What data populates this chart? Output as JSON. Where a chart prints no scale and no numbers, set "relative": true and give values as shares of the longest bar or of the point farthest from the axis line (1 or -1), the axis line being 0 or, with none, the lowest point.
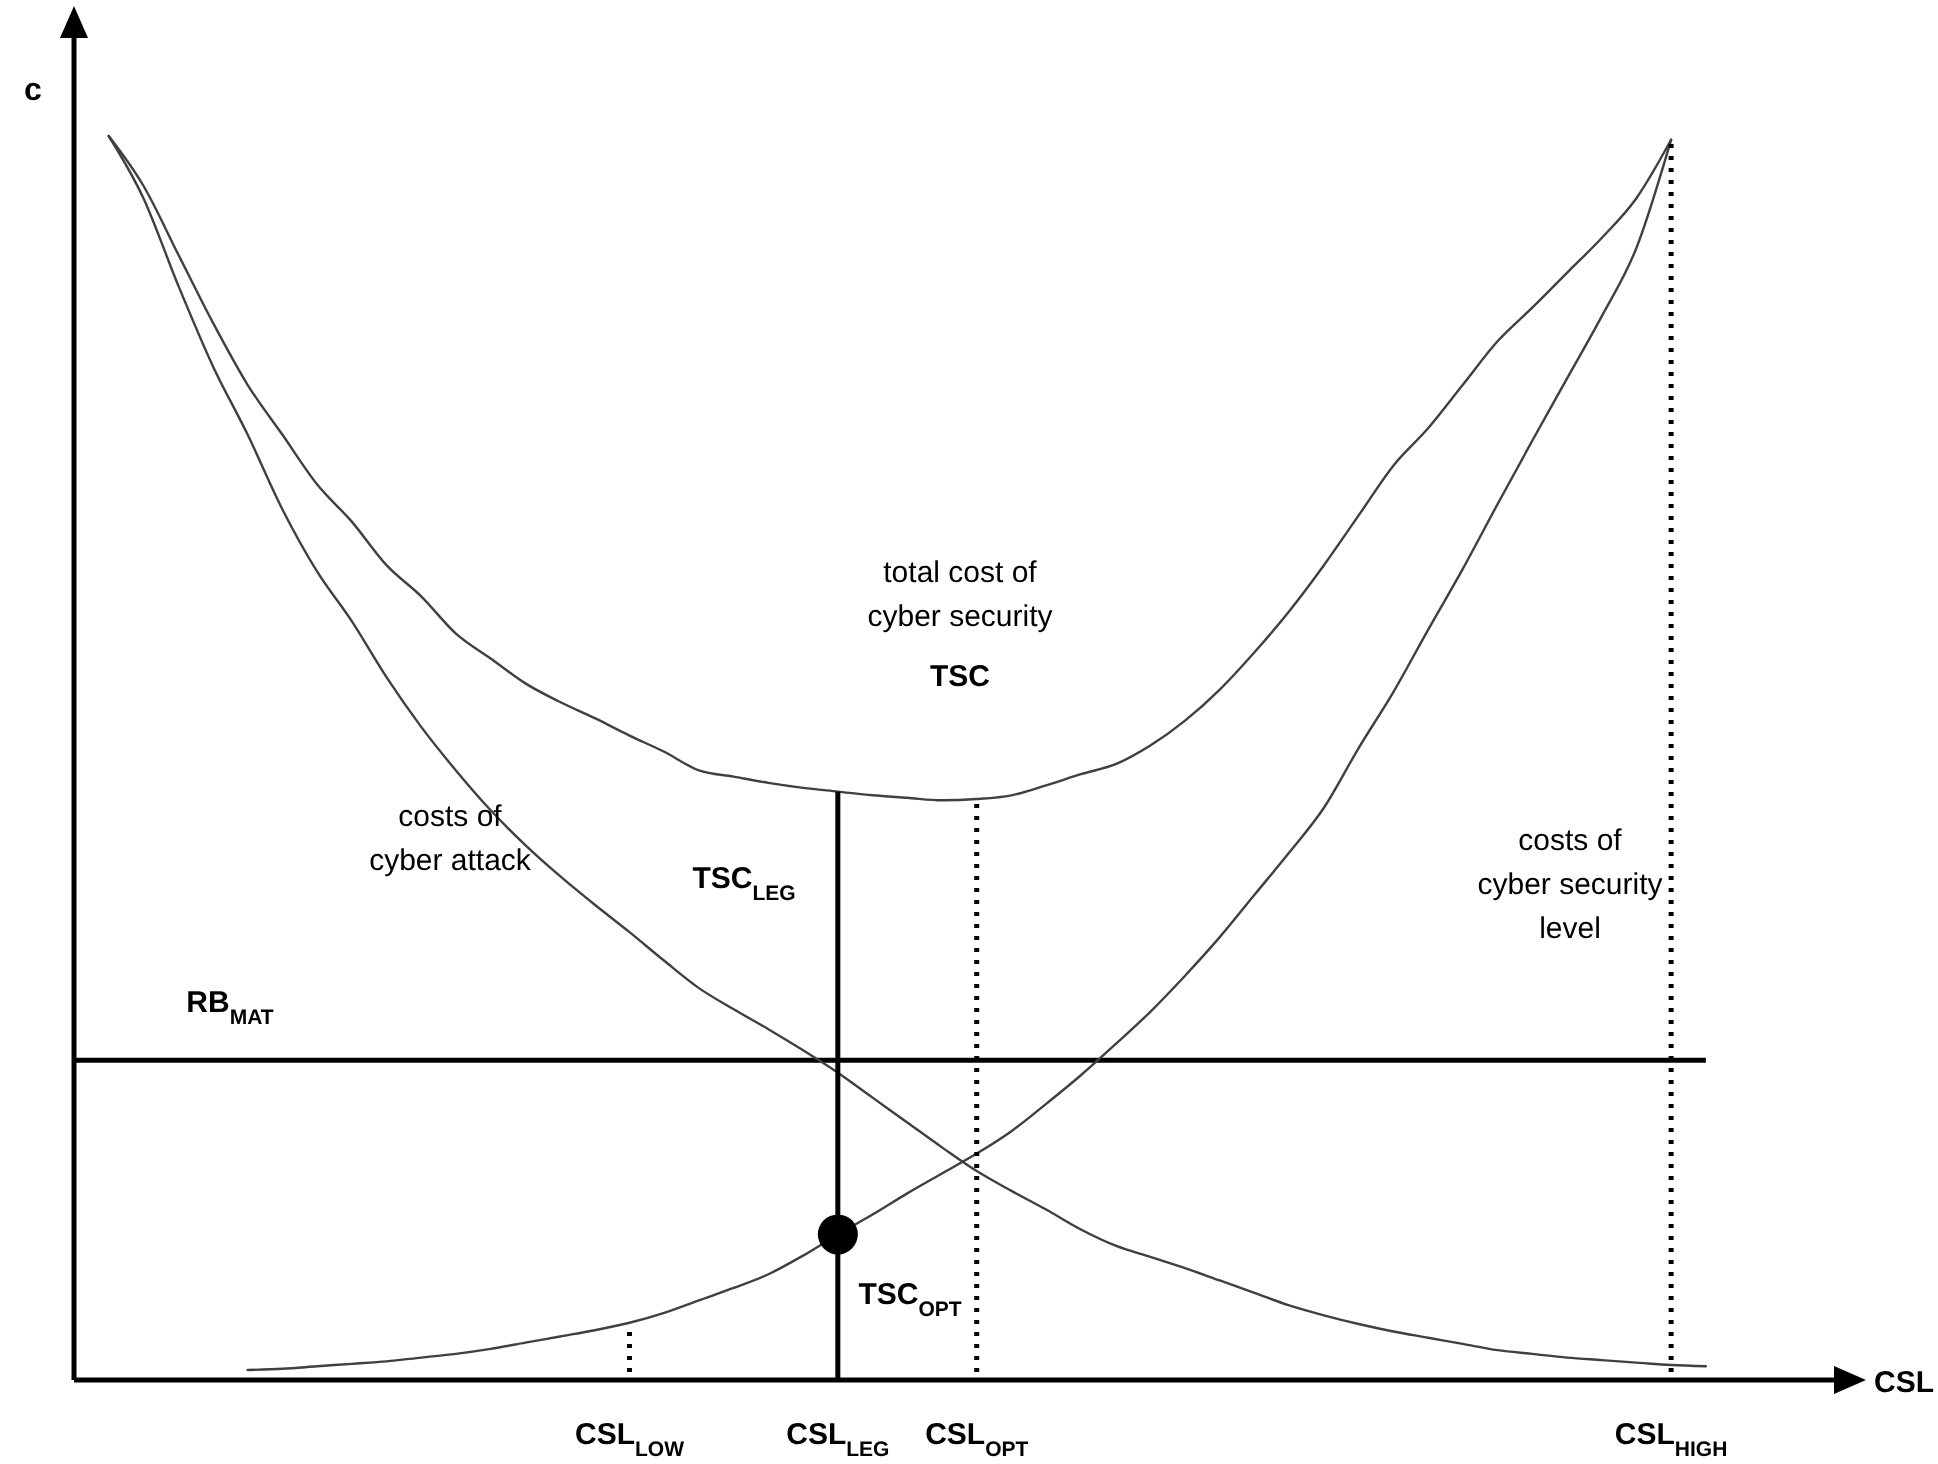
{
  "chart_data": {
    "type": "line",
    "relative": true,
    "xlabel": "CSL",
    "ylabel": "c",
    "categories": [
      null,
      null,
      null,
      null,
      null,
      null,
      null,
      null,
      null,
      null,
      null,
      null,
      null,
      null,
      null,
      null,
      "CSL$_{LOW}$",
      null,
      null,
      null,
      null,
      null,
      "CSL$_{LEG}$",
      null,
      null,
      null,
      "CSL$_{OPT}$",
      null,
      null,
      null,
      null,
      null,
      null,
      null,
      null,
      null,
      null,
      null,
      null,
      null,
      null,
      null,
      null,
      null,
      null,
      null,
      "CSL$_{HIGH}$",
      null,
      null,
      null,
      null
    ],
    "series": [
      {
        "color": "#404040",
        "values": [
          null,
          1.0,
          0.95,
          0.88,
          0.815,
          0.76,
          0.7,
          0.65,
          0.61,
          0.565,
          0.525,
          0.49,
          0.458,
          0.43,
          0.405,
          0.382,
          0.36,
          0.337,
          0.315,
          0.298,
          0.282,
          0.265,
          0.247,
          0.227,
          0.207,
          0.187,
          0.168,
          0.152,
          0.137,
          0.121,
          0.108,
          0.099,
          0.09,
          0.08,
          0.07,
          0.06,
          0.052,
          0.045,
          0.039,
          0.034,
          0.029,
          0.024,
          0.021,
          0.018,
          0.016,
          0.014,
          0.012,
          0.011,
          null,
          null,
          null
        ]
      },
      {
        "color": "#404040",
        "values": [
          null,
          null,
          null,
          null,
          null,
          0.008,
          0.009,
          0.011,
          0.013,
          0.015,
          0.018,
          0.021,
          0.025,
          0.03,
          0.035,
          0.04,
          0.046,
          0.054,
          0.064,
          0.074,
          0.085,
          0.1,
          0.117,
          0.133,
          0.15,
          0.166,
          0.182,
          0.2,
          0.222,
          0.245,
          0.27,
          0.296,
          0.325,
          0.356,
          0.39,
          0.424,
          0.46,
          0.508,
          0.553,
          0.603,
          0.652,
          0.704,
          0.755,
          0.805,
          0.855,
          0.91,
          0.997,
          null,
          null,
          null,
          null
        ]
      },
      {
        "color": "#404040",
        "values": [
          null,
          1.0,
          0.96,
          0.905,
          0.85,
          0.8,
          0.76,
          0.72,
          0.69,
          0.655,
          0.63,
          0.6,
          0.58,
          0.56,
          0.545,
          0.532,
          0.518,
          0.505,
          0.49,
          0.485,
          0.48,
          0.476,
          0.473,
          0.47,
          0.468,
          0.466,
          0.467,
          0.47,
          0.478,
          0.487,
          0.495,
          0.51,
          0.53,
          0.555,
          0.585,
          0.618,
          0.655,
          0.695,
          0.735,
          0.765,
          0.8,
          0.835,
          0.862,
          0.89,
          0.918,
          0.95,
          0.997,
          null,
          null,
          null,
          null
        ]
      },
      {
        "type": "bar",
        "color": "#000000",
        "line_style": "solid",
        "values": [
          null,
          null,
          null,
          null,
          null,
          null,
          null,
          null,
          null,
          null,
          null,
          null,
          null,
          null,
          null,
          null,
          null,
          null,
          null,
          null,
          null,
          null,
          0.473,
          null,
          null,
          null,
          null,
          null,
          null,
          null,
          null,
          null,
          null,
          null,
          null,
          null,
          null,
          null,
          null,
          null,
          null,
          null,
          null,
          null,
          null,
          null,
          null,
          null,
          null,
          null,
          null
        ]
      },
      {
        "type": "bar",
        "color": "#000000",
        "line_style": "dotted",
        "values": [
          null,
          null,
          null,
          null,
          null,
          null,
          null,
          null,
          null,
          null,
          null,
          null,
          null,
          null,
          null,
          null,
          0.045,
          null,
          null,
          null,
          null,
          null,
          null,
          null,
          null,
          null,
          0.467,
          null,
          null,
          null,
          null,
          null,
          null,
          null,
          null,
          null,
          null,
          null,
          null,
          null,
          null,
          null,
          null,
          null,
          null,
          null,
          0.997,
          null,
          null,
          null,
          null
        ]
      },
      {
        "type": "scatter",
        "marker": "circle",
        "color": "#000000",
        "x": [
          "CSL$_{LEG}$"
        ],
        "values": [
          0.117
        ]
      }
    ],
    "ref_lines": [
      {
        "axis": "y",
        "value": 0.257,
        "label": "RB$_{MAT}$",
        "color": "#000000"
      }
    ],
    "annotations": [
      "total cost of\ncyber security",
      "TSC",
      "costs of\ncyber attack",
      "costs of\ncyber security\nlevel",
      "TSC$_{LEG}$",
      "TSC$_{OPT}$"
    ]
  }
}
